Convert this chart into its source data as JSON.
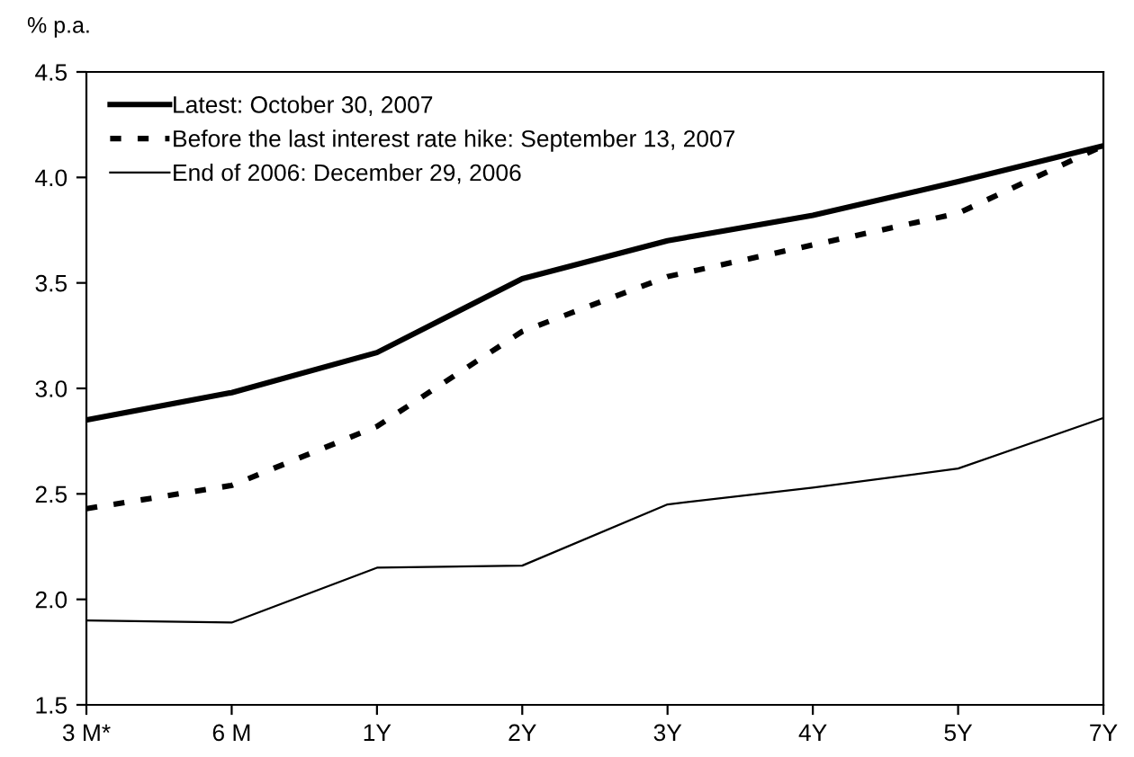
{
  "chart_data": {
    "type": "line",
    "ylabel": "% p.a.",
    "categories": [
      "3 M*",
      "6 M",
      "1Y",
      "2Y",
      "3Y",
      "4Y",
      "5Y",
      "7Y"
    ],
    "series": [
      {
        "name": "Latest: October 30, 2007",
        "color": "#000000",
        "line_style": "solid",
        "values": [
          2.85,
          2.98,
          3.17,
          3.52,
          3.7,
          3.82,
          3.98,
          4.15
        ]
      },
      {
        "name": "Before the last interest rate hike: September 13, 2007",
        "color": "#000000",
        "line_style": "dashed",
        "values": [
          2.43,
          2.54,
          2.82,
          3.27,
          3.53,
          3.68,
          3.83,
          4.15
        ]
      },
      {
        "name": "End of 2006: December 29, 2006",
        "color": "#000000",
        "line_style": "solid",
        "values": [
          1.9,
          1.89,
          2.15,
          2.16,
          2.45,
          2.53,
          2.62,
          2.86
        ]
      }
    ],
    "ylim": [
      1.5,
      4.5
    ],
    "yticks": [
      {
        "value": 1.5,
        "label": "1.5"
      },
      {
        "value": 2.0,
        "label": "2.0"
      },
      {
        "value": 2.5,
        "label": "2.5"
      },
      {
        "value": 3.0,
        "label": "3.0"
      },
      {
        "value": 3.5,
        "label": "3.5"
      },
      {
        "value": 4.0,
        "label": "4.0"
      },
      {
        "value": 4.5,
        "label": "4.5"
      }
    ],
    "grid": false,
    "legend": "top left",
    "marker": "none"
  }
}
